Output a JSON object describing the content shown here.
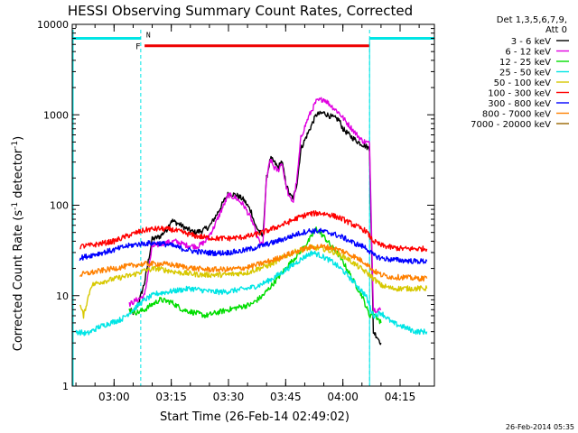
{
  "chart_data": {
    "type": "line",
    "title": "HESSI Observing Summary Count Rates, Corrected",
    "xlabel": "Start Time (26-Feb-14 02:49:02)",
    "ylabel_main": "Corrected Count Rate (s",
    "ylabel_sup1": "-1",
    "ylabel_mid": " detector",
    "ylabel_sup2": "-1",
    "ylabel_end": ")",
    "y_scale": "log",
    "ylim": [
      1,
      10000
    ],
    "xlim": [
      "02:49:02",
      "04:24:00"
    ],
    "x_ticks": [
      "03:00",
      "03:15",
      "03:30",
      "03:45",
      "04:00",
      "04:15"
    ],
    "y_ticks": [
      "1",
      "10",
      "100",
      "1000",
      "10000"
    ],
    "legend_header": [
      "Det 1,3,5,6,7,9,",
      "Att 0"
    ],
    "legend_placement": "outside-right",
    "timestamp": "26-Feb-2014 05:35",
    "flags": [
      {
        "label": "N",
        "color": "#00e5e5"
      },
      {
        "label": "F",
        "color": "#ee0000"
      }
    ],
    "flag_intervals": {
      "night": [
        [
          "02:49:02",
          "03:07:00"
        ],
        [
          "04:07:00",
          "04:24:00"
        ]
      ],
      "flare": [
        "03:08:00",
        "04:07:00"
      ],
      "night_level": 7000,
      "flare_level": 5800
    },
    "series": [
      {
        "name": "3 - 6 keV",
        "color": "#000000",
        "points": [
          [
            "03:04",
            7
          ],
          [
            "03:05",
            6.5
          ],
          [
            "03:06",
            7.5
          ],
          [
            "03:07",
            10
          ],
          [
            "03:08",
            14
          ],
          [
            "03:10",
            42
          ],
          [
            "03:12",
            45
          ],
          [
            "03:14",
            55
          ],
          [
            "03:15",
            68
          ],
          [
            "03:17",
            62
          ],
          [
            "03:19",
            55
          ],
          [
            "03:21",
            50
          ],
          [
            "03:23",
            52
          ],
          [
            "03:25",
            58
          ],
          [
            "03:27",
            80
          ],
          [
            "03:29",
            115
          ],
          [
            "03:30",
            135
          ],
          [
            "03:32",
            130
          ],
          [
            "03:34",
            115
          ],
          [
            "03:36",
            85
          ],
          [
            "03:37",
            60
          ],
          [
            "03:39",
            45
          ],
          [
            "03:40",
            200
          ],
          [
            "03:41",
            330
          ],
          [
            "03:42",
            300
          ],
          [
            "03:43",
            260
          ],
          [
            "03:44",
            310
          ],
          [
            "03:45",
            180
          ],
          [
            "03:46",
            130
          ],
          [
            "03:47",
            120
          ],
          [
            "03:48",
            180
          ],
          [
            "03:49",
            420
          ],
          [
            "03:51",
            650
          ],
          [
            "03:53",
            1000
          ],
          [
            "03:55",
            1050
          ],
          [
            "03:57",
            950
          ],
          [
            "03:59",
            880
          ],
          [
            "04:00",
            700
          ],
          [
            "04:02",
            580
          ],
          [
            "04:04",
            500
          ],
          [
            "04:06",
            450
          ],
          [
            "04:07",
            420
          ],
          [
            "04:08",
            4
          ],
          [
            "04:09",
            3.5
          ],
          [
            "04:10",
            3
          ]
        ]
      },
      {
        "name": "6 - 12 keV",
        "color": "#e000e0",
        "points": [
          [
            "03:04",
            8
          ],
          [
            "03:06",
            9
          ],
          [
            "03:08",
            10
          ],
          [
            "03:10",
            35
          ],
          [
            "03:13",
            38
          ],
          [
            "03:16",
            40
          ],
          [
            "03:19",
            36
          ],
          [
            "03:22",
            35
          ],
          [
            "03:24",
            40
          ],
          [
            "03:26",
            55
          ],
          [
            "03:28",
            85
          ],
          [
            "03:30",
            130
          ],
          [
            "03:32",
            120
          ],
          [
            "03:34",
            100
          ],
          [
            "03:36",
            70
          ],
          [
            "03:38",
            40
          ],
          [
            "03:39",
            35
          ],
          [
            "03:40",
            200
          ],
          [
            "03:41",
            320
          ],
          [
            "03:42",
            260
          ],
          [
            "03:43",
            240
          ],
          [
            "03:44",
            300
          ],
          [
            "03:45",
            170
          ],
          [
            "03:46",
            120
          ],
          [
            "03:47",
            110
          ],
          [
            "03:48",
            200
          ],
          [
            "03:49",
            560
          ],
          [
            "03:51",
            950
          ],
          [
            "03:53",
            1400
          ],
          [
            "03:55",
            1500
          ],
          [
            "03:57",
            1250
          ],
          [
            "03:59",
            1050
          ],
          [
            "04:01",
            820
          ],
          [
            "04:03",
            650
          ],
          [
            "04:05",
            520
          ],
          [
            "04:07",
            480
          ],
          [
            "04:08",
            7
          ],
          [
            "04:10",
            7
          ]
        ]
      },
      {
        "name": "12 - 25 keV",
        "color": "#00dd00",
        "points": [
          [
            "03:04",
            7
          ],
          [
            "03:06",
            6.5
          ],
          [
            "03:08",
            7
          ],
          [
            "03:10",
            8
          ],
          [
            "03:12",
            9
          ],
          [
            "03:15",
            8.5
          ],
          [
            "03:18",
            7
          ],
          [
            "03:21",
            6.5
          ],
          [
            "03:24",
            6
          ],
          [
            "03:27",
            6.5
          ],
          [
            "03:30",
            7
          ],
          [
            "03:33",
            7.5
          ],
          [
            "03:36",
            8
          ],
          [
            "03:39",
            10
          ],
          [
            "03:42",
            14
          ],
          [
            "03:45",
            20
          ],
          [
            "03:48",
            28
          ],
          [
            "03:51",
            40
          ],
          [
            "03:53",
            55
          ],
          [
            "03:55",
            45
          ],
          [
            "03:57",
            35
          ],
          [
            "03:59",
            28
          ],
          [
            "04:01",
            20
          ],
          [
            "04:03",
            14
          ],
          [
            "04:05",
            10
          ],
          [
            "04:07",
            6
          ],
          [
            "04:08",
            6.5
          ],
          [
            "04:10",
            5
          ]
        ]
      },
      {
        "name": "25 - 50 keV",
        "color": "#00e5e5",
        "points": [
          [
            "02:50",
            4
          ],
          [
            "02:53",
            3.8
          ],
          [
            "02:56",
            4.5
          ],
          [
            "02:59",
            5
          ],
          [
            "03:02",
            5.5
          ],
          [
            "03:05",
            7
          ],
          [
            "03:08",
            9
          ],
          [
            "03:11",
            10.5
          ],
          [
            "03:14",
            11
          ],
          [
            "03:17",
            11.5
          ],
          [
            "03:20",
            12
          ],
          [
            "03:23",
            11.5
          ],
          [
            "03:26",
            11
          ],
          [
            "03:29",
            11
          ],
          [
            "03:32",
            11.5
          ],
          [
            "03:35",
            12
          ],
          [
            "03:38",
            13
          ],
          [
            "03:41",
            15
          ],
          [
            "03:44",
            18
          ],
          [
            "03:47",
            22
          ],
          [
            "03:50",
            27
          ],
          [
            "03:52",
            30
          ],
          [
            "03:54",
            28
          ],
          [
            "03:57",
            24
          ],
          [
            "04:00",
            19
          ],
          [
            "04:03",
            14
          ],
          [
            "04:06",
            10
          ],
          [
            "04:08",
            6
          ],
          [
            "04:10",
            6.5
          ],
          [
            "04:13",
            5
          ],
          [
            "04:16",
            4.5
          ],
          [
            "04:19",
            4
          ],
          [
            "04:22",
            4
          ]
        ]
      },
      {
        "name": "50 - 100 keV",
        "color": "#d7c800",
        "points": [
          [
            "02:51",
            8
          ],
          [
            "02:52",
            6
          ],
          [
            "02:54",
            13
          ],
          [
            "02:56",
            14
          ],
          [
            "02:59",
            15
          ],
          [
            "03:02",
            16
          ],
          [
            "03:05",
            17
          ],
          [
            "03:08",
            19
          ],
          [
            "03:11",
            20
          ],
          [
            "03:14",
            19
          ],
          [
            "03:17",
            18
          ],
          [
            "03:20",
            17.5
          ],
          [
            "03:23",
            17
          ],
          [
            "03:26",
            17
          ],
          [
            "03:29",
            17
          ],
          [
            "03:32",
            17.5
          ],
          [
            "03:35",
            18
          ],
          [
            "03:38",
            20
          ],
          [
            "03:41",
            22
          ],
          [
            "03:44",
            26
          ],
          [
            "03:47",
            30
          ],
          [
            "03:50",
            33
          ],
          [
            "03:52",
            34
          ],
          [
            "03:55",
            33
          ],
          [
            "03:58",
            30
          ],
          [
            "04:01",
            26
          ],
          [
            "04:04",
            21
          ],
          [
            "04:07",
            17
          ],
          [
            "04:10",
            13
          ],
          [
            "04:13",
            12
          ],
          [
            "04:16",
            12
          ],
          [
            "04:19",
            12
          ],
          [
            "04:22",
            12
          ]
        ]
      },
      {
        "name": "100 - 300 keV",
        "color": "#ff0000",
        "points": [
          [
            "02:51",
            35
          ],
          [
            "02:54",
            36
          ],
          [
            "02:57",
            38
          ],
          [
            "03:00",
            40
          ],
          [
            "03:03",
            45
          ],
          [
            "03:06",
            50
          ],
          [
            "03:09",
            54
          ],
          [
            "03:12",
            55
          ],
          [
            "03:15",
            54
          ],
          [
            "03:18",
            50
          ],
          [
            "03:21",
            46
          ],
          [
            "03:24",
            44
          ],
          [
            "03:27",
            43
          ],
          [
            "03:30",
            43
          ],
          [
            "03:33",
            44
          ],
          [
            "03:36",
            46
          ],
          [
            "03:39",
            50
          ],
          [
            "03:42",
            56
          ],
          [
            "03:45",
            63
          ],
          [
            "03:48",
            72
          ],
          [
            "03:51",
            80
          ],
          [
            "03:54",
            82
          ],
          [
            "03:57",
            78
          ],
          [
            "04:00",
            70
          ],
          [
            "04:03",
            60
          ],
          [
            "04:06",
            52
          ],
          [
            "04:08",
            40
          ],
          [
            "04:10",
            36
          ],
          [
            "04:13",
            34
          ],
          [
            "04:16",
            33
          ],
          [
            "04:19",
            33
          ],
          [
            "04:22",
            33
          ]
        ]
      },
      {
        "name": "300 - 800 keV",
        "color": "#0000ff",
        "points": [
          [
            "02:51",
            26
          ],
          [
            "02:54",
            28
          ],
          [
            "02:57",
            30
          ],
          [
            "03:00",
            32
          ],
          [
            "03:03",
            35
          ],
          [
            "03:06",
            37
          ],
          [
            "03:09",
            38
          ],
          [
            "03:12",
            38
          ],
          [
            "03:15",
            36
          ],
          [
            "03:18",
            33
          ],
          [
            "03:21",
            31
          ],
          [
            "03:24",
            30
          ],
          [
            "03:27",
            29.5
          ],
          [
            "03:30",
            30
          ],
          [
            "03:33",
            31
          ],
          [
            "03:36",
            33
          ],
          [
            "03:39",
            36
          ],
          [
            "03:42",
            39
          ],
          [
            "03:45",
            43
          ],
          [
            "03:48",
            48
          ],
          [
            "03:51",
            52
          ],
          [
            "03:54",
            52
          ],
          [
            "03:57",
            49
          ],
          [
            "04:00",
            44
          ],
          [
            "04:03",
            38
          ],
          [
            "04:06",
            34
          ],
          [
            "04:08",
            28
          ],
          [
            "04:10",
            26
          ],
          [
            "04:13",
            25
          ],
          [
            "04:16",
            24.5
          ],
          [
            "04:19",
            24
          ],
          [
            "04:22",
            24
          ]
        ]
      },
      {
        "name": "800 - 7000 keV",
        "color": "#ff8000",
        "points": [
          [
            "02:51",
            17
          ],
          [
            "02:54",
            18
          ],
          [
            "02:57",
            19
          ],
          [
            "03:00",
            20
          ],
          [
            "03:03",
            21
          ],
          [
            "03:06",
            22
          ],
          [
            "03:09",
            22.5
          ],
          [
            "03:12",
            22.5
          ],
          [
            "03:15",
            22
          ],
          [
            "03:18",
            21
          ],
          [
            "03:21",
            20
          ],
          [
            "03:24",
            19.5
          ],
          [
            "03:27",
            19.5
          ],
          [
            "03:30",
            19.5
          ],
          [
            "03:33",
            20
          ],
          [
            "03:36",
            21
          ],
          [
            "03:39",
            23
          ],
          [
            "03:42",
            25
          ],
          [
            "03:45",
            28
          ],
          [
            "03:48",
            31
          ],
          [
            "03:51",
            34
          ],
          [
            "03:54",
            35
          ],
          [
            "03:57",
            34
          ],
          [
            "04:00",
            31
          ],
          [
            "04:03",
            27
          ],
          [
            "04:06",
            23
          ],
          [
            "04:08",
            19
          ],
          [
            "04:10",
            17
          ],
          [
            "04:13",
            16
          ],
          [
            "04:16",
            16
          ],
          [
            "04:19",
            15.5
          ],
          [
            "04:22",
            15.5
          ]
        ]
      },
      {
        "name": "7000 - 20000 keV",
        "color": "#996600",
        "points": []
      }
    ]
  }
}
